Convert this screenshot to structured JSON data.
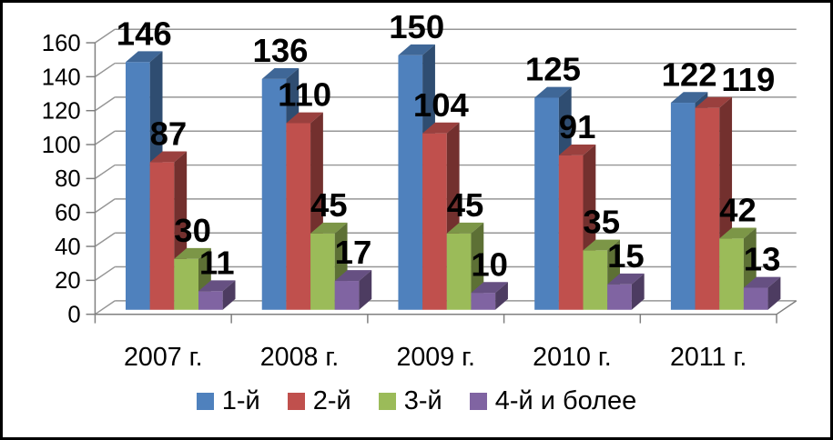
{
  "chart_data": {
    "type": "bar",
    "style": "3d-clustered-column",
    "title": "",
    "categories": [
      "2007 г.",
      "2008 г.",
      "2009 г.",
      "2010 г.",
      "2011 г."
    ],
    "series": [
      {
        "name": "1-й",
        "color": "#4F81BD",
        "values": [
          146,
          136,
          150,
          125,
          122
        ]
      },
      {
        "name": "2-й",
        "color": "#C0504D",
        "values": [
          87,
          110,
          104,
          91,
          119
        ]
      },
      {
        "name": "3-й",
        "color": "#9BBB59",
        "values": [
          30,
          45,
          45,
          35,
          42
        ]
      },
      {
        "name": "4-й и более",
        "color": "#8064A2",
        "values": [
          11,
          17,
          10,
          15,
          13
        ]
      }
    ],
    "ylim": [
      0,
      160
    ],
    "ytick_step": 20,
    "ytick_labels": [
      "0",
      "20",
      "40",
      "60",
      "80",
      "100",
      "120",
      "140",
      "160"
    ],
    "data_labels_shown": true,
    "grid": "horizontal",
    "legend_position": "bottom",
    "colors": {
      "gridline": "#969696",
      "axis": "#7F7F7F",
      "text": "#000000",
      "background": "#FFFFFF",
      "frame_border": "#000000"
    }
  }
}
